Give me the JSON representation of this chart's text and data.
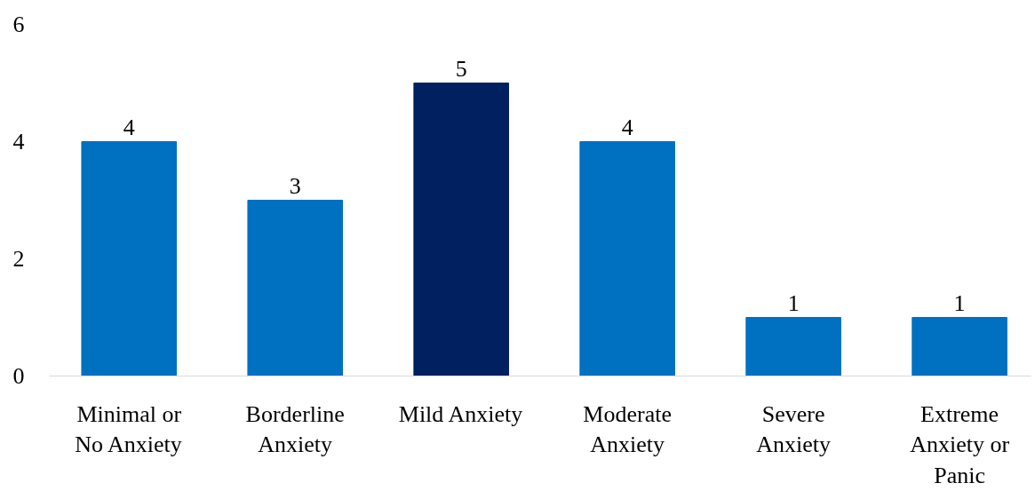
{
  "chart_data": {
    "type": "bar",
    "categories": [
      "Minimal or No Anxiety",
      "Borderline Anxiety",
      "Mild Anxiety",
      "Moderate Anxiety",
      "Severe Anxiety",
      "Extreme Anxiety or Panic"
    ],
    "values": [
      4,
      3,
      5,
      4,
      1,
      1
    ],
    "colors": [
      "#0070c0",
      "#0070c0",
      "#002060",
      "#0070c0",
      "#0070c0",
      "#0070c0"
    ],
    "ylim": [
      0,
      6
    ],
    "yticks": [
      0,
      2,
      4,
      6
    ],
    "grid": false,
    "data_labels": true
  }
}
